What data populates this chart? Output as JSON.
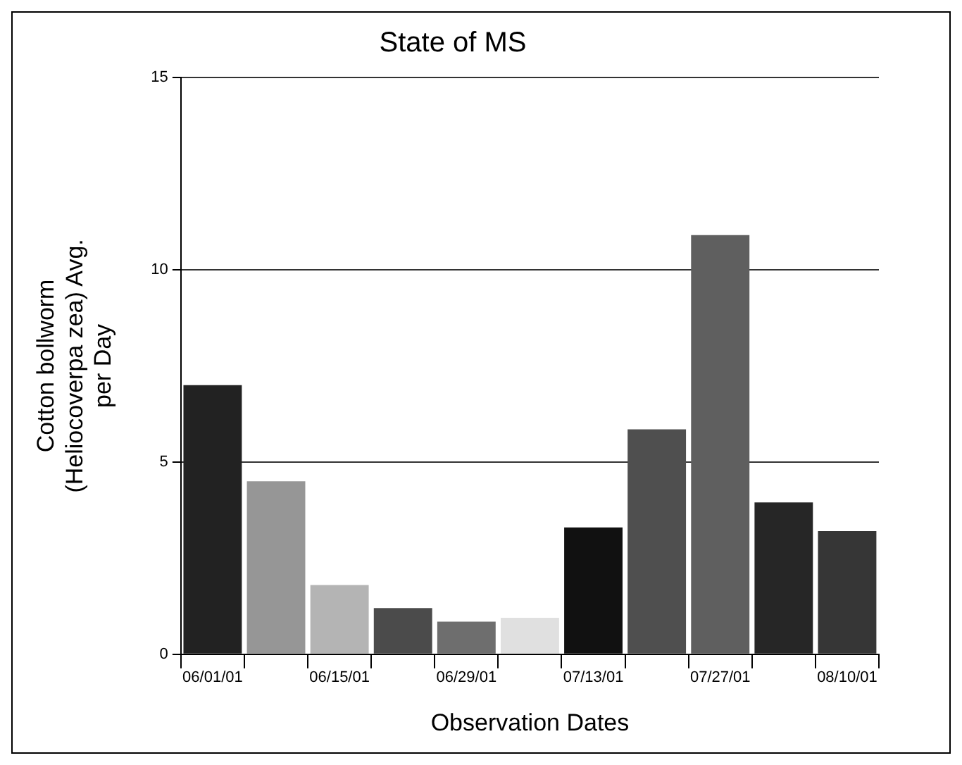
{
  "chart_data": {
    "type": "bar",
    "title": "State of MS",
    "xlabel": "Observation Dates",
    "ylabel": "Cotton bollworm (Heliocoverpa zea) Avg. per Day",
    "categories": [
      "06/01/01",
      null,
      "06/15/01",
      null,
      "06/29/01",
      null,
      "07/13/01",
      null,
      "07/27/01",
      null,
      "08/10/01"
    ],
    "values": [
      7.0,
      4.5,
      1.8,
      1.2,
      0.85,
      0.95,
      3.3,
      5.85,
      10.9,
      3.95,
      3.2
    ],
    "colors": [
      "#222222",
      "#969696",
      "#b4b4b4",
      "#4b4b4b",
      "#6e6e6e",
      "#e0e0e0",
      "#111111",
      "#4f4f4f",
      "#5f5f5f",
      "#262626",
      "#363636"
    ],
    "ylim": [
      0,
      15
    ],
    "yticks": [
      0,
      5,
      10,
      15
    ],
    "grid": "y",
    "legend": false
  }
}
